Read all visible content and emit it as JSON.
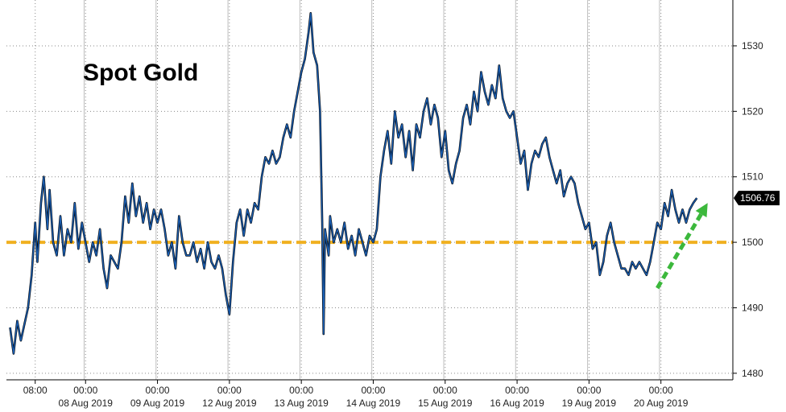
{
  "chart_data": {
    "type": "line",
    "title": "Spot Gold",
    "xlabel": "",
    "ylabel": "",
    "ylim": [
      1479,
      1537
    ],
    "y_ticks": [
      1480,
      1490,
      1500,
      1510,
      1520,
      1530
    ],
    "grid": true,
    "x_tick_labels": [
      {
        "time": "08:00",
        "date": ""
      },
      {
        "time": "00:00",
        "date": "08 Aug 2019"
      },
      {
        "time": "00:00",
        "date": "09 Aug 2019"
      },
      {
        "time": "00:00",
        "date": "12 Aug 2019"
      },
      {
        "time": "00:00",
        "date": "13 Aug 2019"
      },
      {
        "time": "00:00",
        "date": "14 Aug 2019"
      },
      {
        "time": "00:00",
        "date": "15 Aug 2019"
      },
      {
        "time": "00:00",
        "date": "16 Aug 2019"
      },
      {
        "time": "00:00",
        "date": "19 Aug 2019"
      },
      {
        "time": "00:00",
        "date": "20 Aug 2019"
      }
    ],
    "x_tick_positions": [
      0.3,
      1,
      2,
      3,
      4,
      5,
      6,
      7,
      8,
      9
    ],
    "xlim": [
      -0.1,
      10
    ],
    "series": [
      {
        "values": [
          [
            -0.05,
            1487
          ],
          [
            0.0,
            1483
          ],
          [
            0.05,
            1488
          ],
          [
            0.1,
            1485
          ],
          [
            0.2,
            1490
          ],
          [
            0.25,
            1495
          ],
          [
            0.3,
            1503
          ],
          [
            0.33,
            1497
          ],
          [
            0.38,
            1506
          ],
          [
            0.42,
            1510
          ],
          [
            0.47,
            1502
          ],
          [
            0.5,
            1508
          ],
          [
            0.55,
            1500
          ],
          [
            0.6,
            1498
          ],
          [
            0.65,
            1504
          ],
          [
            0.7,
            1498
          ],
          [
            0.75,
            1502
          ],
          [
            0.8,
            1500
          ],
          [
            0.85,
            1506
          ],
          [
            0.9,
            1499
          ],
          [
            0.95,
            1503
          ],
          [
            1.0,
            1500
          ],
          [
            1.05,
            1497
          ],
          [
            1.1,
            1500
          ],
          [
            1.15,
            1498
          ],
          [
            1.2,
            1502
          ],
          [
            1.25,
            1496
          ],
          [
            1.3,
            1493
          ],
          [
            1.35,
            1498
          ],
          [
            1.45,
            1496
          ],
          [
            1.5,
            1500
          ],
          [
            1.55,
            1507
          ],
          [
            1.6,
            1503
          ],
          [
            1.65,
            1509
          ],
          [
            1.7,
            1504
          ],
          [
            1.75,
            1507
          ],
          [
            1.8,
            1503
          ],
          [
            1.85,
            1506
          ],
          [
            1.9,
            1502
          ],
          [
            1.95,
            1505
          ],
          [
            2.0,
            1503
          ],
          [
            2.05,
            1505
          ],
          [
            2.1,
            1502
          ],
          [
            2.15,
            1498
          ],
          [
            2.2,
            1500
          ],
          [
            2.25,
            1496
          ],
          [
            2.3,
            1504
          ],
          [
            2.35,
            1500
          ],
          [
            2.4,
            1498
          ],
          [
            2.45,
            1498
          ],
          [
            2.5,
            1500
          ],
          [
            2.55,
            1497
          ],
          [
            2.6,
            1499
          ],
          [
            2.65,
            1496
          ],
          [
            2.7,
            1500
          ],
          [
            2.75,
            1497
          ],
          [
            2.8,
            1496
          ],
          [
            2.85,
            1498
          ],
          [
            2.9,
            1496
          ],
          [
            2.95,
            1492
          ],
          [
            3.0,
            1489
          ],
          [
            3.05,
            1497
          ],
          [
            3.1,
            1503
          ],
          [
            3.15,
            1505
          ],
          [
            3.2,
            1501
          ],
          [
            3.25,
            1505
          ],
          [
            3.3,
            1503
          ],
          [
            3.35,
            1506
          ],
          [
            3.4,
            1505
          ],
          [
            3.45,
            1510
          ],
          [
            3.5,
            1513
          ],
          [
            3.55,
            1512
          ],
          [
            3.6,
            1514
          ],
          [
            3.65,
            1512
          ],
          [
            3.7,
            1513
          ],
          [
            3.75,
            1516
          ],
          [
            3.8,
            1518
          ],
          [
            3.85,
            1516
          ],
          [
            3.9,
            1520
          ],
          [
            3.95,
            1523
          ],
          [
            4.0,
            1526
          ],
          [
            4.05,
            1528
          ],
          [
            4.1,
            1532
          ],
          [
            4.13,
            1535
          ],
          [
            4.17,
            1529
          ],
          [
            4.22,
            1527
          ],
          [
            4.26,
            1520
          ],
          [
            4.29,
            1503
          ],
          [
            4.31,
            1486
          ],
          [
            4.33,
            1502
          ],
          [
            4.38,
            1498
          ],
          [
            4.4,
            1504
          ],
          [
            4.45,
            1500
          ],
          [
            4.5,
            1502
          ],
          [
            4.55,
            1500
          ],
          [
            4.6,
            1503
          ],
          [
            4.65,
            1499
          ],
          [
            4.7,
            1501
          ],
          [
            4.75,
            1498
          ],
          [
            4.8,
            1502
          ],
          [
            4.85,
            1500
          ],
          [
            4.9,
            1498
          ],
          [
            4.95,
            1501
          ],
          [
            5.0,
            1500
          ],
          [
            5.05,
            1502
          ],
          [
            5.1,
            1510
          ],
          [
            5.15,
            1514
          ],
          [
            5.2,
            1517
          ],
          [
            5.25,
            1512
          ],
          [
            5.3,
            1520
          ],
          [
            5.35,
            1516
          ],
          [
            5.4,
            1518
          ],
          [
            5.45,
            1513
          ],
          [
            5.5,
            1517
          ],
          [
            5.55,
            1511
          ],
          [
            5.6,
            1518
          ],
          [
            5.65,
            1516
          ],
          [
            5.7,
            1520
          ],
          [
            5.75,
            1522
          ],
          [
            5.8,
            1518
          ],
          [
            5.85,
            1521
          ],
          [
            5.9,
            1519
          ],
          [
            5.95,
            1513
          ],
          [
            6.0,
            1517
          ],
          [
            6.05,
            1511
          ],
          [
            6.1,
            1509
          ],
          [
            6.15,
            1512
          ],
          [
            6.2,
            1514
          ],
          [
            6.25,
            1519
          ],
          [
            6.3,
            1521
          ],
          [
            6.35,
            1518
          ],
          [
            6.4,
            1523
          ],
          [
            6.45,
            1520
          ],
          [
            6.5,
            1526
          ],
          [
            6.55,
            1523
          ],
          [
            6.6,
            1521
          ],
          [
            6.65,
            1524
          ],
          [
            6.7,
            1522
          ],
          [
            6.75,
            1527
          ],
          [
            6.8,
            1522
          ],
          [
            6.85,
            1520
          ],
          [
            6.9,
            1519
          ],
          [
            6.95,
            1520
          ],
          [
            7.0,
            1516
          ],
          [
            7.05,
            1512
          ],
          [
            7.1,
            1514
          ],
          [
            7.15,
            1508
          ],
          [
            7.2,
            1512
          ],
          [
            7.25,
            1514
          ],
          [
            7.3,
            1513
          ],
          [
            7.35,
            1515
          ],
          [
            7.4,
            1516
          ],
          [
            7.45,
            1513
          ],
          [
            7.5,
            1511
          ],
          [
            7.55,
            1509
          ],
          [
            7.6,
            1511
          ],
          [
            7.65,
            1507
          ],
          [
            7.7,
            1509
          ],
          [
            7.75,
            1510
          ],
          [
            7.8,
            1509
          ],
          [
            7.85,
            1506
          ],
          [
            7.9,
            1504
          ],
          [
            7.95,
            1502
          ],
          [
            8.0,
            1503
          ],
          [
            8.05,
            1499
          ],
          [
            8.1,
            1500
          ],
          [
            8.15,
            1495
          ],
          [
            8.2,
            1497
          ],
          [
            8.25,
            1501
          ],
          [
            8.3,
            1503
          ],
          [
            8.35,
            1500
          ],
          [
            8.4,
            1498
          ],
          [
            8.45,
            1496
          ],
          [
            8.5,
            1496
          ],
          [
            8.55,
            1495
          ],
          [
            8.6,
            1497
          ],
          [
            8.65,
            1496
          ],
          [
            8.7,
            1497
          ],
          [
            8.75,
            1496
          ],
          [
            8.8,
            1495
          ],
          [
            8.85,
            1497
          ],
          [
            8.9,
            1500
          ],
          [
            8.95,
            1503
          ],
          [
            9.0,
            1502
          ],
          [
            9.05,
            1506
          ],
          [
            9.1,
            1504
          ],
          [
            9.15,
            1508
          ],
          [
            9.2,
            1505
          ],
          [
            9.25,
            1503
          ],
          [
            9.3,
            1505
          ],
          [
            9.35,
            1503
          ],
          [
            9.4,
            1505
          ],
          [
            9.45,
            1506
          ],
          [
            9.5,
            1506.76
          ]
        ]
      }
    ],
    "reference_line": {
      "value": 1500,
      "color": "#f0b020",
      "style": "dashed"
    },
    "last_price": {
      "value": 1506.76,
      "label": "1506.76"
    },
    "annotation_arrow": {
      "from": [
        8.95,
        1493
      ],
      "to": [
        9.65,
        1506
      ],
      "color": "#3cb83c",
      "style": "dashed"
    },
    "colors": {
      "line": "#1a5fb4",
      "line_edge": "#000000",
      "grid": "#8a8a8a",
      "label_box": "#000000"
    }
  }
}
